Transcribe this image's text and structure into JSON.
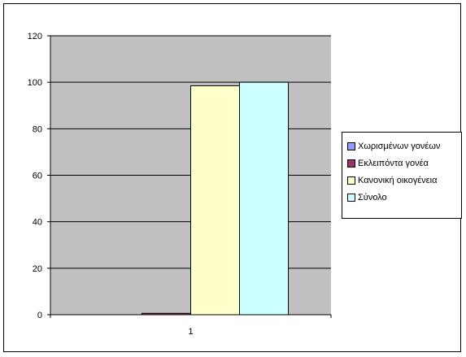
{
  "chart_data": {
    "type": "bar",
    "categories": [
      "1"
    ],
    "series": [
      {
        "name": "Χωρισμένων γονέων",
        "values": [
          0
        ],
        "color": "#9999FF"
      },
      {
        "name": "Εκλειπόντα γονέα",
        "values": [
          0.6
        ],
        "color": "#993366"
      },
      {
        "name": "Κανονική οικογένεια",
        "values": [
          98.5
        ],
        "color": "#FFFFCC"
      },
      {
        "name": "Σύνολο",
        "values": [
          100
        ],
        "color": "#CCFFFF"
      }
    ],
    "title": "",
    "xlabel": "",
    "ylabel": "",
    "ylim": [
      0,
      120
    ],
    "yticks": [
      0,
      20,
      40,
      60,
      80,
      100,
      120
    ],
    "grid": true,
    "legend_position": "right",
    "plot_background": "#C0C0C0"
  }
}
